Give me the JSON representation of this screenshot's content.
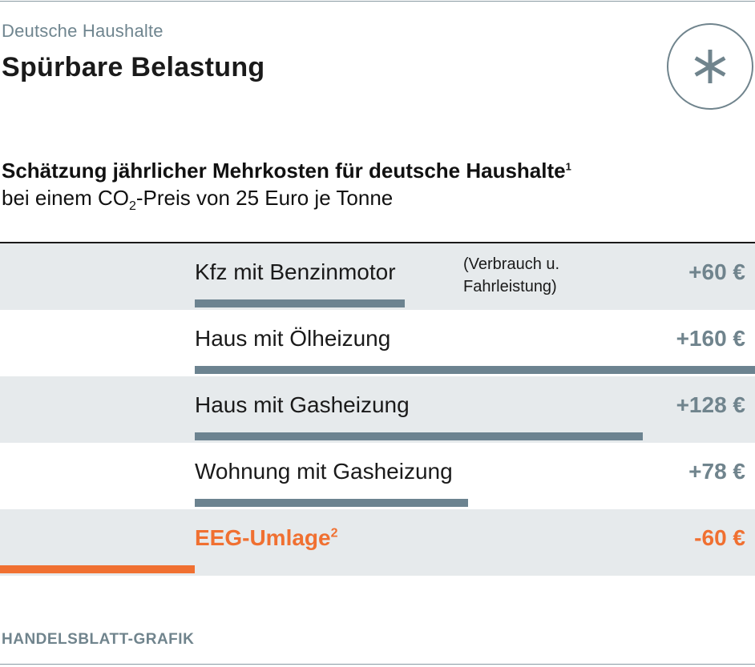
{
  "header": {
    "kicker": "Deutsche Haushalte",
    "headline": "Spürbare Belastung",
    "badge_icon": "asterisk-icon"
  },
  "subtitle": {
    "line1": "Schätzung jährlicher Mehrkosten für deutsche Haushalte",
    "line1_footnote": "1",
    "line2_pre": "bei einem CO",
    "line2_sub": "2",
    "line2_post": "-Preis von 25 Euro je Tonne"
  },
  "chart_data": {
    "type": "bar",
    "orientation": "horizontal",
    "categories": [
      "Kfz mit Benzinmotor",
      "Haus mit Ölheizung",
      "Haus mit Gasheizung",
      "Wohnung mit Gasheizung",
      "EEG-Umlage"
    ],
    "values": [
      60,
      160,
      128,
      78,
      -60
    ],
    "value_labels": [
      "+60 €",
      "+160 €",
      "+128 €",
      "+78 €",
      "-60 €"
    ],
    "notes": [
      "(Verbrauch u. Fahrleistung)",
      "",
      "",
      "",
      ""
    ],
    "footnotes": [
      "",
      "",
      "",
      "",
      "2"
    ],
    "unit": "€",
    "colors": {
      "positive": "#6c8390",
      "negative": "#f07031",
      "shade": "#e6eaec"
    }
  },
  "source": "HANDELSBLATT-GRAFIK",
  "colors": {
    "accent": "#f07031",
    "muted": "#70848d"
  }
}
